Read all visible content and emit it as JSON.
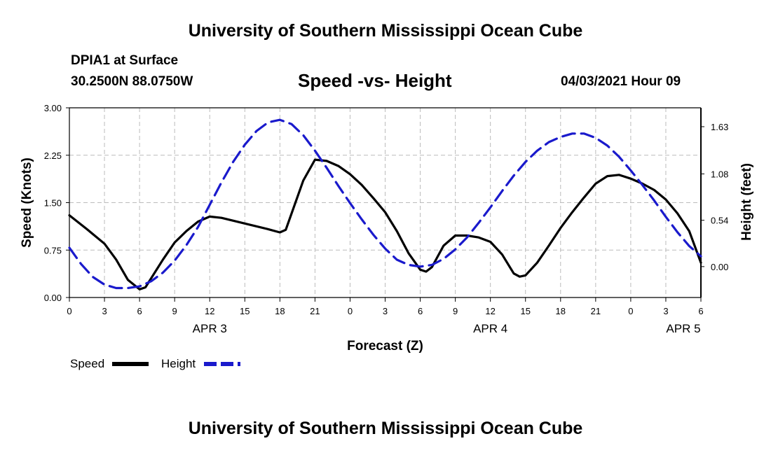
{
  "header": {
    "title": "University of Southern Mississippi Ocean Cube",
    "station": "DPIA1 at Surface",
    "coordinates": "30.2500N  88.0750W",
    "subtitle": "Speed -vs- Height",
    "datetime": "04/03/2021 Hour 09"
  },
  "footer": {
    "title": "University of Southern Mississippi Ocean Cube"
  },
  "legend": {
    "speed_label": "Speed",
    "height_label": "Height"
  },
  "colors": {
    "speed": "#000000",
    "height": "#1a1acc",
    "grid": "#bbbbbb"
  },
  "chart_data": {
    "type": "line",
    "title": "Speed -vs- Height",
    "xlabel": "Forecast (Z)",
    "ylabel": "Speed (Knots)",
    "y2label": "Height (feet)",
    "xlim": [
      0,
      54
    ],
    "ylim": [
      0,
      3
    ],
    "y2lim": [
      -0.36,
      1.85
    ],
    "x_ticks": [
      0,
      3,
      6,
      9,
      12,
      15,
      18,
      21,
      24,
      27,
      30,
      33,
      36,
      39,
      42,
      45,
      48,
      51,
      54
    ],
    "x_tick_labels": [
      "0",
      "3",
      "6",
      "9",
      "12",
      "15",
      "18",
      "21",
      "0",
      "3",
      "6",
      "9",
      "12",
      "15",
      "18",
      "21",
      "0",
      "3",
      "6"
    ],
    "y_ticks": [
      0,
      0.75,
      1.5,
      2.25,
      3.0
    ],
    "y_tick_labels": [
      "0.00",
      "0.75",
      "1.50",
      "2.25",
      "3.00"
    ],
    "y2_ticks": [
      0,
      0.54,
      1.08,
      1.63
    ],
    "y2_tick_labels": [
      "0.00",
      "0.54",
      "1.08",
      "1.63"
    ],
    "day_labels": [
      {
        "x": 12,
        "label": "APR 3"
      },
      {
        "x": 36,
        "label": "APR 4"
      },
      {
        "x": 52.5,
        "label": "APR 5"
      }
    ],
    "grid": true,
    "series": [
      {
        "name": "Speed",
        "axis": "left",
        "x": [
          0,
          1.5,
          3,
          4,
          5,
          6,
          6.5,
          8,
          9,
          10,
          11,
          12,
          13,
          15,
          17,
          18,
          18.5,
          20,
          21,
          22,
          23,
          24,
          25,
          26,
          27,
          28,
          29,
          30,
          30.5,
          31,
          32,
          33,
          34,
          35,
          36,
          37,
          38,
          38.5,
          39,
          40,
          41,
          42,
          43,
          44,
          45,
          46,
          47,
          48,
          49,
          50,
          51,
          52,
          53,
          54
        ],
        "y": [
          1.3,
          1.08,
          0.85,
          0.6,
          0.28,
          0.13,
          0.16,
          0.6,
          0.87,
          1.05,
          1.2,
          1.28,
          1.26,
          1.17,
          1.08,
          1.03,
          1.07,
          1.85,
          2.18,
          2.16,
          2.08,
          1.95,
          1.78,
          1.57,
          1.35,
          1.05,
          0.7,
          0.44,
          0.41,
          0.48,
          0.82,
          0.98,
          0.98,
          0.95,
          0.88,
          0.68,
          0.38,
          0.33,
          0.35,
          0.55,
          0.82,
          1.1,
          1.35,
          1.58,
          1.8,
          1.92,
          1.94,
          1.88,
          1.8,
          1.7,
          1.55,
          1.33,
          1.05,
          0.55
        ]
      },
      {
        "name": "Height",
        "axis": "right",
        "x": [
          0,
          1,
          2,
          3,
          4,
          5,
          6,
          7,
          8,
          9,
          10,
          11,
          12,
          13,
          14,
          15,
          16,
          17,
          18,
          19,
          20,
          21,
          22,
          23,
          24,
          25,
          26,
          27,
          28,
          29,
          30,
          31,
          32,
          33,
          34,
          35,
          36,
          37,
          38,
          39,
          40,
          41,
          42,
          43,
          44,
          45,
          46,
          47,
          48,
          49,
          50,
          51,
          52,
          53,
          54
        ],
        "y": [
          0.22,
          0.03,
          -0.12,
          -0.21,
          -0.25,
          -0.25,
          -0.23,
          -0.17,
          -0.07,
          0.07,
          0.25,
          0.46,
          0.72,
          0.98,
          1.22,
          1.42,
          1.58,
          1.68,
          1.71,
          1.66,
          1.53,
          1.35,
          1.15,
          0.94,
          0.74,
          0.55,
          0.37,
          0.21,
          0.08,
          0.02,
          0.0,
          0.02,
          0.09,
          0.2,
          0.34,
          0.51,
          0.69,
          0.88,
          1.06,
          1.22,
          1.35,
          1.45,
          1.51,
          1.55,
          1.55,
          1.5,
          1.41,
          1.28,
          1.12,
          0.95,
          0.77,
          0.58,
          0.4,
          0.24,
          0.12
        ]
      }
    ]
  }
}
